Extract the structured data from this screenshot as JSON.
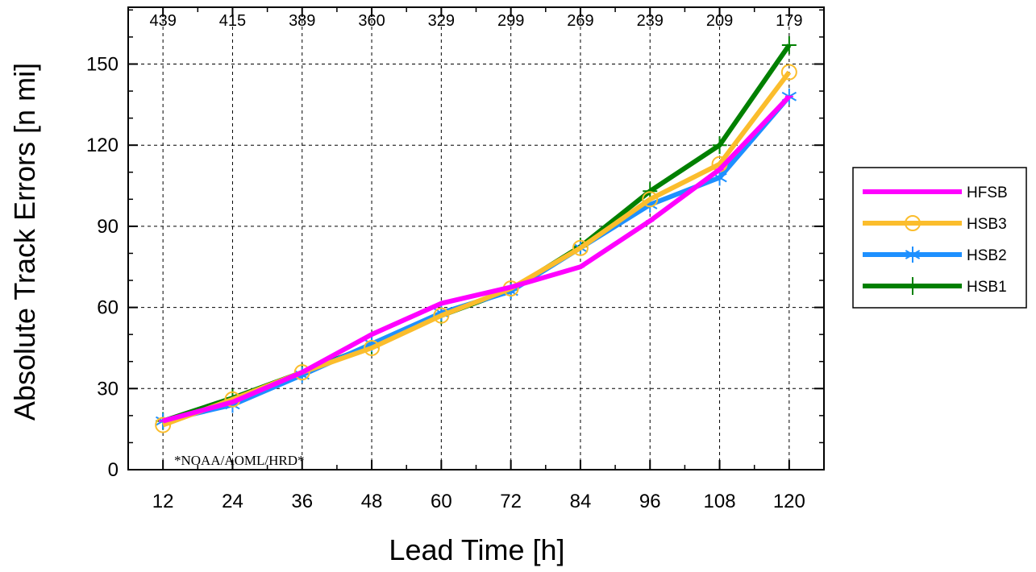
{
  "chart_data": {
    "type": "line",
    "xlabel": "Lead Time [h]",
    "ylabel": "Absolute Track Errors [n mi]",
    "x": [
      12,
      24,
      36,
      48,
      60,
      72,
      84,
      96,
      108,
      120
    ],
    "x_tick_labels": [
      "12",
      "24",
      "36",
      "48",
      "60",
      "72",
      "84",
      "96",
      "108",
      "120"
    ],
    "xlim": [
      6,
      126
    ],
    "ylim": [
      0,
      171
    ],
    "y_ticks": [
      0,
      30,
      60,
      90,
      120,
      150
    ],
    "y_tick_labels": [
      "0",
      "30",
      "60",
      "90",
      "120",
      "150"
    ],
    "sample_counts": [
      "439",
      "415",
      "389",
      "360",
      "329",
      "299",
      "269",
      "239",
      "209",
      "179"
    ],
    "grid": true,
    "legend_position": "right",
    "watermark": "*NOAA/AOML/HRD*",
    "series": [
      {
        "name": "HFSB",
        "color": "#ff00ff",
        "marker": "dash",
        "values": [
          18,
          25,
          36,
          50,
          61.5,
          67.5,
          75,
          92,
          111,
          138
        ]
      },
      {
        "name": "HSB3",
        "color": "#fbbd2c",
        "marker": "circle",
        "values": [
          16.5,
          26,
          36,
          45,
          57,
          67,
          82,
          100,
          113,
          147
        ]
      },
      {
        "name": "HSB2",
        "color": "#1e90ff",
        "marker": "asterisk",
        "values": [
          18,
          24,
          35,
          46.5,
          58,
          66,
          82,
          98,
          108,
          138
        ]
      },
      {
        "name": "HSB1",
        "color": "#008000",
        "marker": "plus",
        "values": [
          18,
          26.5,
          36,
          46,
          57,
          66.5,
          82.5,
          103,
          120,
          157
        ]
      }
    ]
  }
}
